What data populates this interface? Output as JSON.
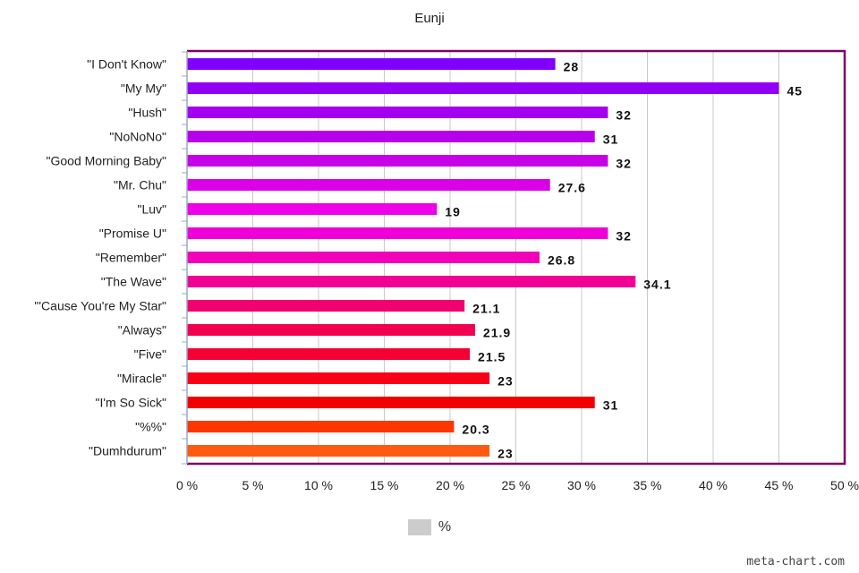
{
  "chart_data": {
    "type": "bar",
    "orientation": "horizontal",
    "title": "Eunji",
    "categories": [
      "\"I Don't Know\"",
      "\"My My\"",
      "\"Hush\"",
      "\"NoNoNo\"",
      "\"Good Morning Baby\"",
      "\"Mr. Chu\"",
      "\"Luv\"",
      "\"Promise U\"",
      "\"Remember\"",
      "\"The Wave\"",
      "\"'Cause You're My Star\"",
      "\"Always\"",
      "\"Five\"",
      "\"Miracle\"",
      "\"I'm So Sick\"",
      "\"%%\"",
      "\"Dumhdurum\""
    ],
    "series": [
      {
        "name": "%",
        "values": [
          28,
          45,
          32,
          31,
          32,
          27.6,
          19,
          32,
          26.8,
          34.1,
          21.1,
          21.9,
          21.5,
          23,
          31,
          20.3,
          23
        ],
        "value_labels": [
          "28",
          "45",
          "32",
          "31",
          "32",
          "27.6",
          "19",
          "32",
          "26.8",
          "34.1",
          "21.1",
          "21.9",
          "21.5",
          "23",
          "31",
          "20.3",
          "23"
        ]
      }
    ],
    "bar_colors": [
      "#8000ff",
      "#9100f5",
      "#a300f0",
      "#b600ec",
      "#c800e8",
      "#d900e6",
      "#ee00e8",
      "#f000d8",
      "#f000b8",
      "#f00095",
      "#f00070",
      "#f20050",
      "#f50035",
      "#f80018",
      "#f00000",
      "#ff3500",
      "#ff5a10"
    ],
    "x_ticks": [
      "0 %",
      "5 %",
      "10 %",
      "15 %",
      "20 %",
      "25 %",
      "30 %",
      "35 %",
      "40 %",
      "45 %",
      "50 %"
    ],
    "xlim": [
      0,
      50
    ],
    "grid": true,
    "legend_position": "bottom",
    "legend_color": "#cccccc",
    "frame_color": "#800060"
  },
  "watermark": "meta-chart.com"
}
